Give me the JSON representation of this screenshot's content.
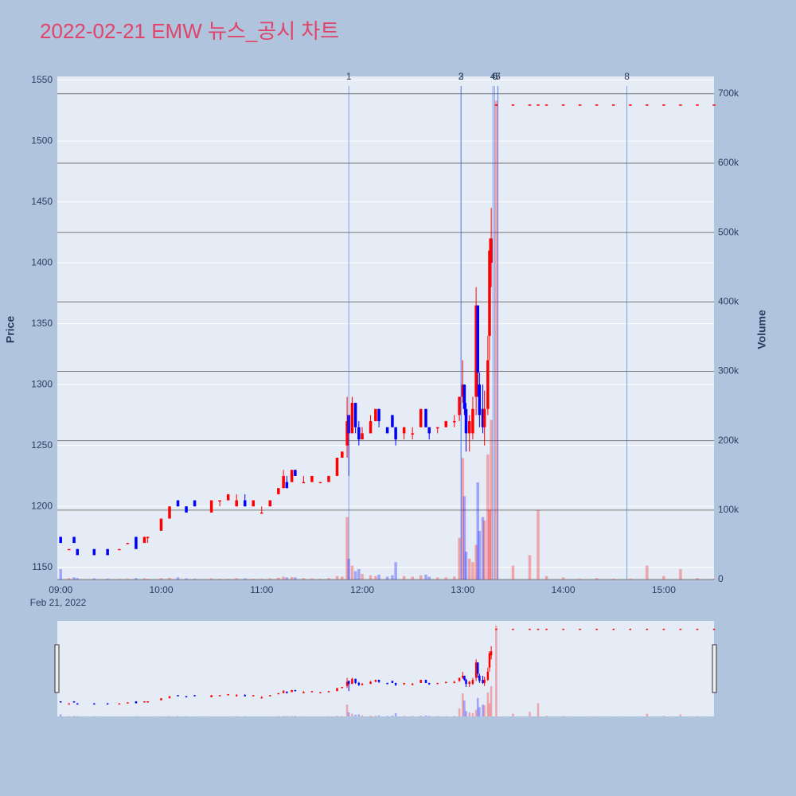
{
  "chart_data": {
    "type": "candlestick",
    "title": "2022-02-21 EMW 뉴스_공시 차트",
    "y_label": "Price",
    "y2_label": "Volume",
    "x_date_label": "Feb 21, 2022",
    "up_color": "#ff0000",
    "down_color": "#0000ff",
    "x": [
      "09:00",
      "09:05",
      "09:08",
      "09:10",
      "09:20",
      "09:28",
      "09:35",
      "09:40",
      "09:45",
      "09:50",
      "09:52",
      "10:00",
      "10:05",
      "10:10",
      "10:15",
      "10:20",
      "10:30",
      "10:35",
      "10:40",
      "10:45",
      "10:50",
      "10:55",
      "11:00",
      "11:05",
      "11:10",
      "11:13",
      "11:15",
      "11:18",
      "11:20",
      "11:25",
      "11:30",
      "11:35",
      "11:40",
      "11:45",
      "11:48",
      "11:51",
      "11:52",
      "11:54",
      "11:56",
      "11:58",
      "12:00",
      "12:05",
      "12:08",
      "12:10",
      "12:15",
      "12:18",
      "12:20",
      "12:25",
      "12:30",
      "12:35",
      "12:38",
      "12:40",
      "12:45",
      "12:50",
      "12:55",
      "12:58",
      "13:00",
      "13:01",
      "13:02",
      "13:04",
      "13:06",
      "13:08",
      "13:09",
      "13:10",
      "13:12",
      "13:13",
      "13:15",
      "13:16",
      "13:17",
      "13:20",
      "13:30",
      "13:40",
      "13:45",
      "13:50",
      "14:00",
      "14:10",
      "14:20",
      "14:30",
      "14:40",
      "14:50",
      "15:00",
      "15:10",
      "15:20",
      "15:30"
    ],
    "open": [
      1175,
      1165,
      1175,
      1165,
      1165,
      1165,
      1165,
      1170,
      1175,
      1170,
      1175,
      1180,
      1190,
      1205,
      1200,
      1205,
      1195,
      1205,
      1205,
      1200,
      1205,
      1200,
      1195,
      1200,
      1210,
      1215,
      1220,
      1220,
      1230,
      1220,
      1220,
      1220,
      1220,
      1225,
      1240,
      1250,
      1275,
      1260,
      1285,
      1265,
      1255,
      1260,
      1270,
      1280,
      1265,
      1275,
      1265,
      1260,
      1260,
      1265,
      1280,
      1265,
      1265,
      1265,
      1270,
      1275,
      1290,
      1300,
      1280,
      1260,
      1260,
      1290,
      1365,
      1300,
      1280,
      1265,
      1280,
      1340,
      1400,
      1530,
      1530,
      1530,
      1530,
      1530,
      1530,
      1530,
      1530,
      1530,
      1530,
      1530,
      1530,
      1530,
      1530,
      1530
    ],
    "high": [
      1175,
      1165,
      1175,
      1165,
      1165,
      1165,
      1165,
      1170,
      1175,
      1175,
      1175,
      1190,
      1200,
      1205,
      1200,
      1205,
      1205,
      1205,
      1210,
      1210,
      1210,
      1205,
      1200,
      1205,
      1215,
      1230,
      1225,
      1230,
      1230,
      1225,
      1225,
      1220,
      1225,
      1240,
      1245,
      1290,
      1275,
      1290,
      1285,
      1270,
      1265,
      1275,
      1280,
      1280,
      1265,
      1275,
      1265,
      1265,
      1265,
      1280,
      1280,
      1265,
      1265,
      1270,
      1275,
      1290,
      1320,
      1300,
      1285,
      1275,
      1290,
      1380,
      1365,
      1310,
      1300,
      1295,
      1340,
      1420,
      1445,
      1530,
      1530,
      1530,
      1530,
      1530,
      1530,
      1530,
      1530,
      1530,
      1530,
      1530,
      1530,
      1530,
      1530,
      1530
    ],
    "low": [
      1170,
      1165,
      1170,
      1160,
      1160,
      1160,
      1165,
      1170,
      1165,
      1170,
      1170,
      1180,
      1190,
      1200,
      1195,
      1200,
      1195,
      1200,
      1205,
      1200,
      1200,
      1200,
      1195,
      1200,
      1210,
      1215,
      1215,
      1220,
      1225,
      1220,
      1220,
      1220,
      1220,
      1225,
      1240,
      1240,
      1225,
      1260,
      1260,
      1250,
      1255,
      1260,
      1270,
      1265,
      1260,
      1265,
      1250,
      1255,
      1255,
      1265,
      1265,
      1255,
      1260,
      1265,
      1265,
      1270,
      1285,
      1275,
      1245,
      1245,
      1255,
      1275,
      1290,
      1265,
      1260,
      1250,
      1275,
      1320,
      1380,
      1530,
      1530,
      1530,
      1530,
      1530,
      1530,
      1530,
      1530,
      1530,
      1530,
      1530,
      1530,
      1530,
      1530,
      1530
    ],
    "close": [
      1170,
      1165,
      1170,
      1160,
      1160,
      1160,
      1165,
      1170,
      1165,
      1175,
      1175,
      1190,
      1200,
      1200,
      1195,
      1200,
      1205,
      1205,
      1210,
      1205,
      1200,
      1205,
      1195,
      1205,
      1215,
      1225,
      1215,
      1230,
      1225,
      1220,
      1225,
      1220,
      1225,
      1240,
      1245,
      1270,
      1260,
      1285,
      1265,
      1255,
      1260,
      1270,
      1280,
      1270,
      1260,
      1265,
      1255,
      1265,
      1260,
      1280,
      1265,
      1260,
      1265,
      1270,
      1270,
      1290,
      1300,
      1280,
      1260,
      1270,
      1280,
      1365,
      1310,
      1275,
      1265,
      1280,
      1320,
      1410,
      1420,
      1530,
      1530,
      1530,
      1530,
      1530,
      1530,
      1530,
      1530,
      1530,
      1530,
      1530,
      1530,
      1530,
      1530,
      1530
    ],
    "volume": [
      15000,
      2000,
      3000,
      2000,
      1500,
      1000,
      800,
      1000,
      2000,
      1500,
      1000,
      2000,
      2500,
      3000,
      1500,
      1000,
      1500,
      1000,
      1000,
      2000,
      1500,
      1000,
      1000,
      1500,
      2500,
      4000,
      3000,
      3500,
      3000,
      2000,
      1500,
      1000,
      2000,
      5000,
      4000,
      90000,
      30000,
      20000,
      12000,
      15000,
      8000,
      6000,
      5000,
      7000,
      4000,
      6000,
      25000,
      5000,
      4000,
      6000,
      7000,
      4000,
      3000,
      3000,
      4000,
      60000,
      175000,
      120000,
      40000,
      30000,
      25000,
      50000,
      140000,
      70000,
      90000,
      85000,
      180000,
      100000,
      230000,
      690000,
      20000,
      35000,
      100000,
      5000,
      3000,
      1000,
      2000,
      1000,
      1000,
      20000,
      5000,
      15000,
      2000,
      1000
    ],
    "events": [
      {
        "label": "1",
        "x": "11:52"
      },
      {
        "label": "2",
        "x": "12:59"
      },
      {
        "label": "3",
        "x": "12:59"
      },
      {
        "label": "4",
        "x": "13:18"
      },
      {
        "label": "5",
        "x": "13:21"
      },
      {
        "label": "6",
        "x": "13:19"
      },
      {
        "label": "7",
        "x": "13:21"
      },
      {
        "label": "8",
        "x": "14:38"
      }
    ],
    "xlim": [
      "08:58",
      "15:30"
    ],
    "xticks": [
      "09:00",
      "10:00",
      "11:00",
      "12:00",
      "13:00",
      "14:00",
      "15:00"
    ],
    "ylim": [
      1140,
      1553
    ],
    "yticks": [
      1150,
      1200,
      1250,
      1300,
      1350,
      1400,
      1450,
      1500,
      1550
    ],
    "y2lim": [
      0,
      725000
    ],
    "y2ticks": [
      0,
      {
        "value": 100000,
        "label": "100k"
      },
      {
        "value": 200000,
        "label": "200k"
      },
      {
        "value": 300000,
        "label": "300k"
      },
      {
        "value": 400000,
        "label": "400k"
      },
      {
        "value": 500000,
        "label": "500k"
      },
      {
        "value": 600000,
        "label": "600k"
      },
      {
        "value": 700000,
        "label": "700k"
      }
    ],
    "grid": true
  }
}
